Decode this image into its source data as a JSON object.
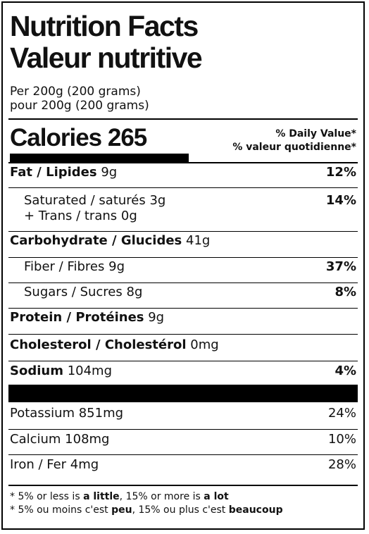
{
  "header": {
    "title_en": "Nutrition Facts",
    "title_fr": "Valeur nutritive",
    "serving_en": "Per 200g (200 grams)",
    "serving_fr": "pour 200g (200 grams)"
  },
  "calories": {
    "label": "Calories",
    "value": "265",
    "dv_en": "% Daily Value*",
    "dv_fr": "% valeur quotidienne*"
  },
  "nutrients": {
    "fat": {
      "label": "Fat / Lipides",
      "amount": "9g",
      "dv": "12%"
    },
    "saturated": {
      "label": "Saturated / saturés",
      "amount": "3g",
      "trans": "+ Trans / trans 0g",
      "dv": "14%"
    },
    "carbs": {
      "label": "Carbohydrate / Glucides",
      "amount": "41g"
    },
    "fiber": {
      "label": "Fiber / Fibres",
      "amount": "9g",
      "dv": "37%"
    },
    "sugars": {
      "label": "Sugars / Sucres",
      "amount": "8g",
      "dv": "8%"
    },
    "protein": {
      "label": "Protein / Protéines",
      "amount": "9g"
    },
    "cholesterol": {
      "label": "Cholesterol / Cholestérol",
      "amount": "0mg"
    },
    "sodium": {
      "label": "Sodium",
      "amount": "104mg",
      "dv": "4%"
    }
  },
  "minerals": {
    "potassium": {
      "label": "Potassium 851mg",
      "dv": "24%"
    },
    "calcium": {
      "label": "Calcium 108mg",
      "dv": "10%"
    },
    "iron": {
      "label": "Iron / Fer 4mg",
      "dv": "28%"
    }
  },
  "footnote": {
    "en_1": "* 5% or less is ",
    "en_bold_1": "a little",
    "en_2": ", 15% or more is ",
    "en_bold_2": "a lot",
    "fr_1": "* 5% ou moins c'est ",
    "fr_bold_1": "peu",
    "fr_2": ", 15% ou plus c'est ",
    "fr_bold_2": "beaucoup"
  }
}
